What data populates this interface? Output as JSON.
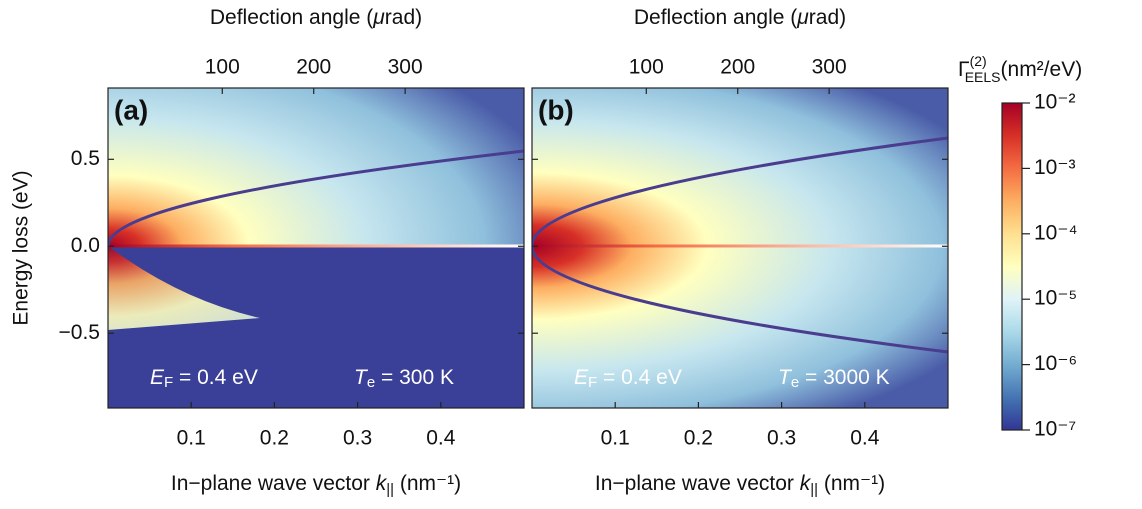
{
  "chart_data": [
    {
      "type": "heatmap",
      "panel_label": "(a)",
      "x_label": [
        "In−plane wave vector ",
        "k",
        "||",
        " (nm⁻¹)"
      ],
      "x2_label": [
        "Deflection angle (",
        "μ",
        "rad)"
      ],
      "y_label": "Energy loss (eV)",
      "xlim": [
        0,
        0.5
      ],
      "xticks": [
        0.1,
        0.2,
        0.3,
        0.4
      ],
      "x2lim": [
        -25,
        430
      ],
      "x2ticks": [
        100,
        200,
        300
      ],
      "ylim": [
        -0.93,
        0.91
      ],
      "yticks": [
        {
          "value": -0.5,
          "label": "−0.5"
        },
        {
          "value": 0.0,
          "label": "0.0"
        },
        {
          "value": 0.5,
          "label": "0.5"
        }
      ],
      "annotations": [
        [
          "E",
          "F",
          " = 0.4 eV"
        ],
        [
          "T",
          "e",
          " = 300 K"
        ]
      ]
    },
    {
      "type": "heatmap",
      "panel_label": "(b)",
      "x_label": [
        "In−plane wave vector ",
        "k",
        "||",
        " (nm⁻¹)"
      ],
      "x2_label": [
        "Deflection angle (",
        "μ",
        "rad)"
      ],
      "xlim": [
        0,
        0.5
      ],
      "xticks": [
        0.1,
        0.2,
        0.3,
        0.4
      ],
      "x2lim": [
        -25,
        430
      ],
      "x2ticks": [
        100,
        200,
        300
      ],
      "ylim": [
        -0.93,
        0.91
      ],
      "annotations": [
        [
          "E",
          "F",
          " = 0.4 eV"
        ],
        [
          "T",
          "e",
          " = 3000 K"
        ]
      ]
    }
  ],
  "colorbar": {
    "title": [
      "Γ",
      "(2)",
      "EELS",
      "(nm²/eV)"
    ],
    "log": true,
    "clim": [
      1e-07,
      0.01
    ],
    "ticks": [
      {
        "value": 0.01,
        "label": "10⁻²"
      },
      {
        "value": 0.001,
        "label": "10⁻³"
      },
      {
        "value": 0.0001,
        "label": "10⁻⁴"
      },
      {
        "value": 1e-05,
        "label": "10⁻⁵"
      },
      {
        "value": 1e-06,
        "label": "10⁻⁶"
      },
      {
        "value": 1e-07,
        "label": "10⁻⁷"
      }
    ],
    "colormap": [
      "#313695",
      "#4575b4",
      "#74add1",
      "#abd9e9",
      "#e0f3f8",
      "#ffffbf",
      "#fee090",
      "#fdae61",
      "#f46d43",
      "#d73027",
      "#a50026"
    ]
  }
}
